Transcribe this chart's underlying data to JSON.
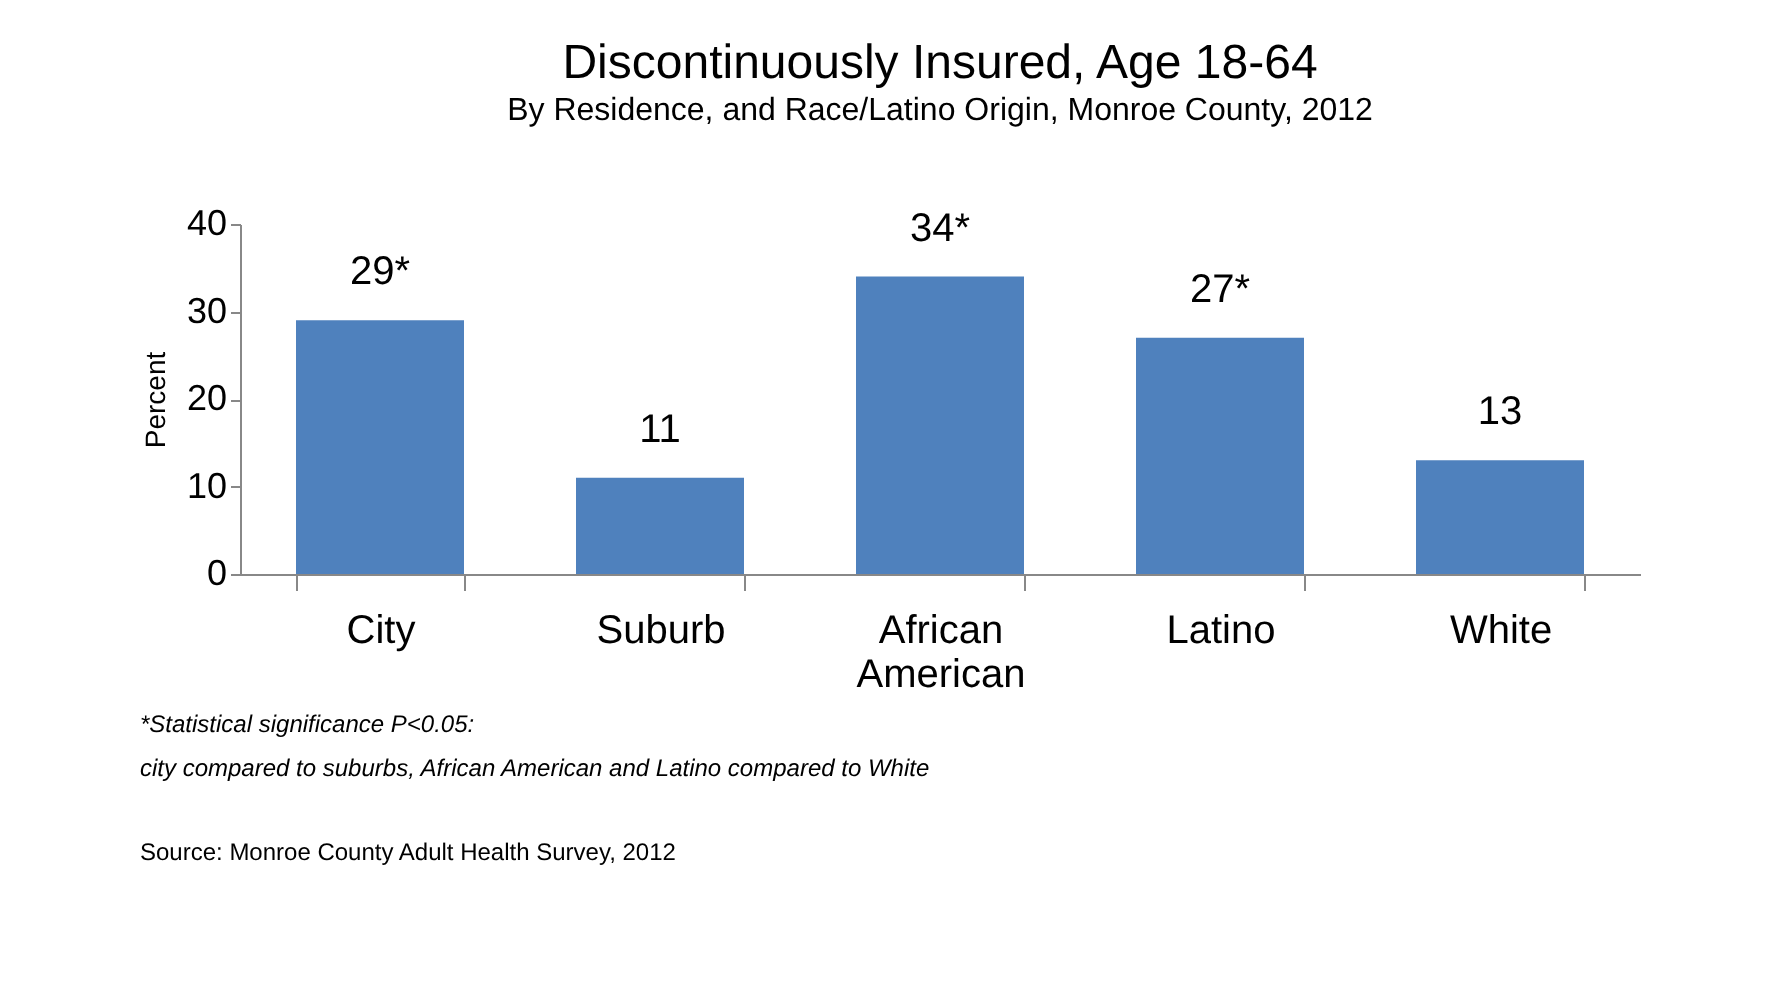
{
  "chart_data": {
    "type": "bar",
    "title": "Discontinuously Insured, Age 18-64",
    "subtitle": "By Residence, and Race/Latino Origin, Monroe County, 2012",
    "ylabel": "Percent",
    "categories": [
      "City",
      "Suburb",
      "African American",
      "Latino",
      "White"
    ],
    "values": [
      29,
      11,
      34,
      27,
      13
    ],
    "value_labels": [
      "29*",
      "11",
      "34*",
      "27*",
      "13"
    ],
    "color": "#4f81bd",
    "ylim": [
      0,
      40
    ],
    "yticks": [
      0,
      10,
      20,
      30,
      40
    ],
    "grid": false,
    "annotations": [
      "*Statistical significance P<0.05:",
      "   city compared to suburbs, African American and Latino compared to White",
      "Source: Monroe County Adult Health Survey, 2012"
    ]
  }
}
